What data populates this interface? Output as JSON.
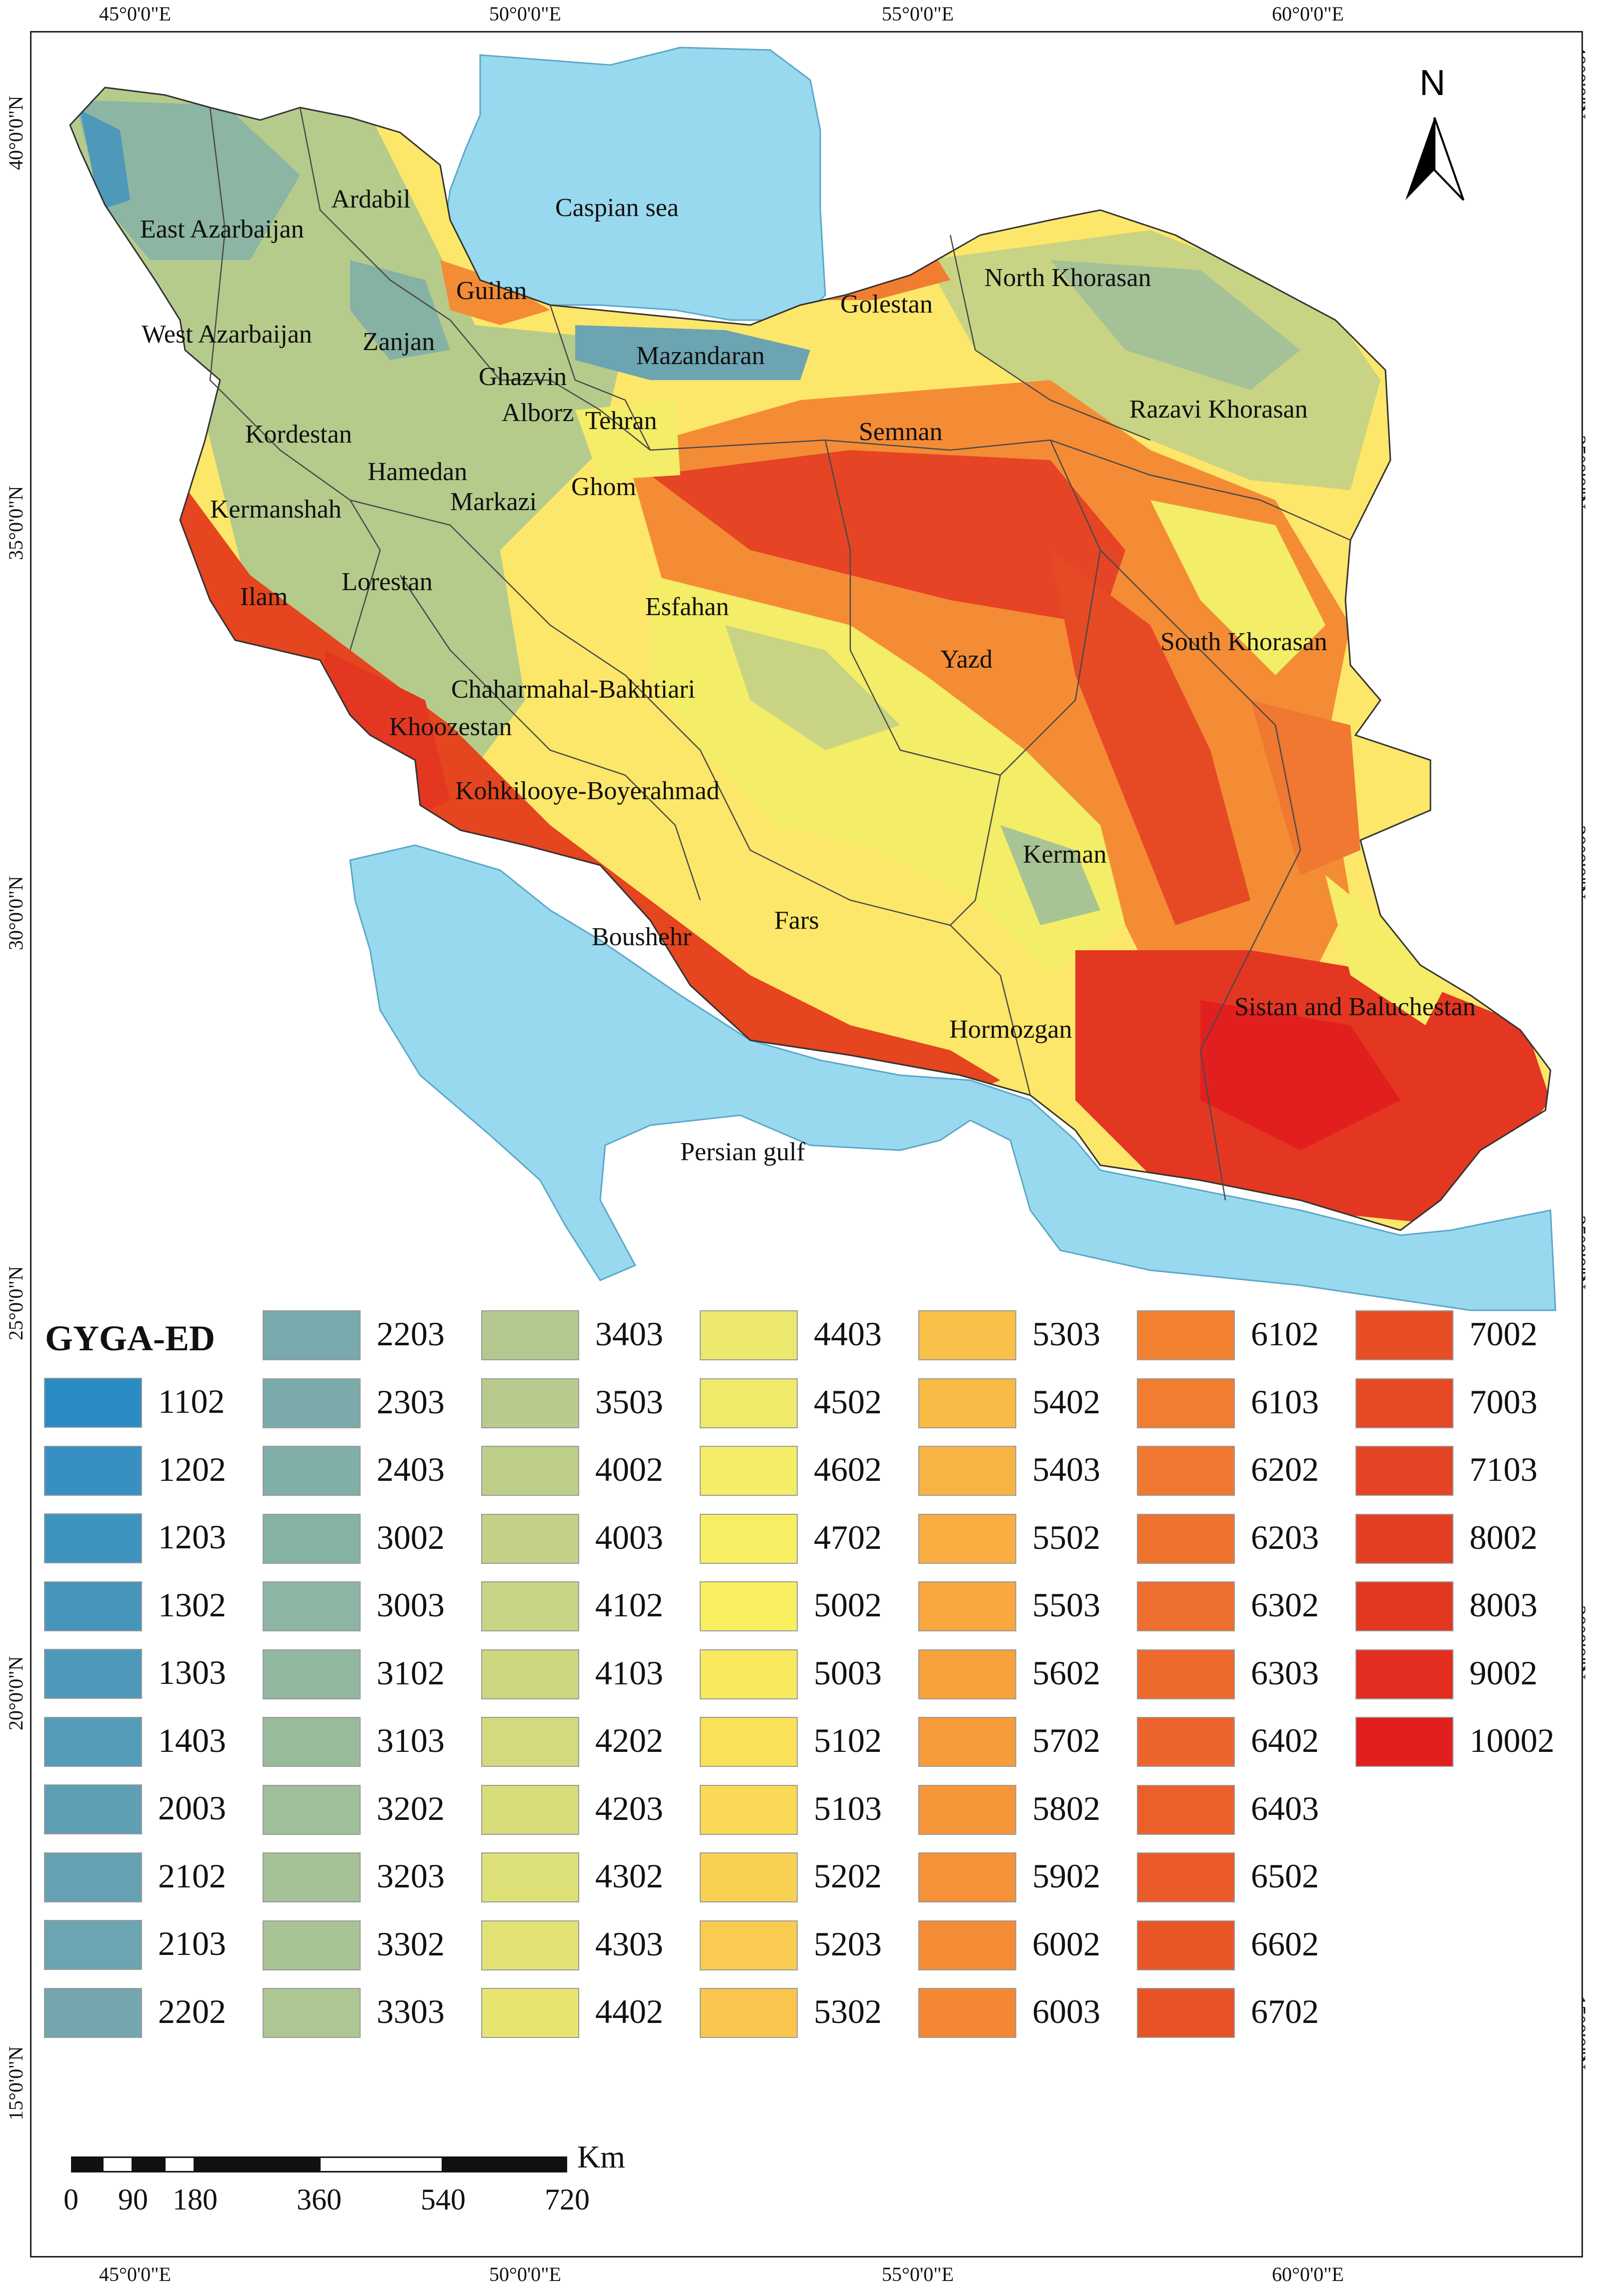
{
  "map": {
    "legend_title": "GYGA-ED",
    "north_label": "N",
    "longitude_labels": [
      "45°0'0\"E",
      "50°0'0\"E",
      "55°0'0\"E",
      "60°0'0\"E"
    ],
    "latitude_labels": [
      "40°0'0\"N",
      "35°0'0\"N",
      "30°0'0\"N",
      "25°0'0\"N",
      "20°0'0\"N",
      "15°0'0\"N"
    ],
    "water_labels": {
      "caspian": "Caspian sea",
      "gulf": "Persian gulf"
    },
    "provinces": {
      "ardabil": "Ardabil",
      "east_azarbaijan": "East Azarbaijan",
      "west_azarbaijan": "West Azarbaijan",
      "guilan": "Guilan",
      "zanjan": "Zanjan",
      "ghazvin": "Ghazvin",
      "alborz": "Alborz",
      "tehran": "Tehran",
      "mazandaran": "Mazandaran",
      "golestan": "Golestan",
      "north_khorasan": "North Khorasan",
      "razavi_khorasan": "Razavi Khorasan",
      "semnan": "Semnan",
      "kordestan": "Kordestan",
      "hamedan": "Hamedan",
      "ghom": "Ghom",
      "markazi": "Markazi",
      "kermanshah": "Kermanshah",
      "lorestan": "Lorestan",
      "ilam": "Ilam",
      "esfahan": "Esfahan",
      "yazd": "Yazd",
      "south_khorasan": "South Khorasan",
      "chaharmahal": "Chaharmahal-Bakhtiari",
      "khoozestan": "Khoozestan",
      "kohkilooye": "Kohkilooye-Boyerahmad",
      "kerman": "Kerman",
      "fars": "Fars",
      "boushehr": "Boushehr",
      "hormozgan": "Hormozgan",
      "sistan": "Sistan and Baluchestan"
    },
    "scale": {
      "unit": "Km",
      "labels": [
        "0",
        "90",
        "180",
        "360",
        "540",
        "720"
      ]
    },
    "colors": {
      "water": "#99d9f0",
      "country_base": "#fde76a"
    }
  },
  "legend": [
    {
      "label": "1102",
      "color": "#2b8cc4"
    },
    {
      "label": "1202",
      "color": "#3890c2"
    },
    {
      "label": "1203",
      "color": "#3f93bf"
    },
    {
      "label": "1302",
      "color": "#4696bc"
    },
    {
      "label": "1303",
      "color": "#4e99ba"
    },
    {
      "label": "1403",
      "color": "#559cb8"
    },
    {
      "label": "2003",
      "color": "#5e9fb6"
    },
    {
      "label": "2102",
      "color": "#65a1b3"
    },
    {
      "label": "2103",
      "color": "#6ca4b1"
    },
    {
      "label": "2202",
      "color": "#73a6ae"
    },
    {
      "label": "2203",
      "color": "#77a9ad"
    },
    {
      "label": "2303",
      "color": "#7aabaa"
    },
    {
      "label": "2403",
      "color": "#80aea8"
    },
    {
      "label": "3002",
      "color": "#86b1a5"
    },
    {
      "label": "3003",
      "color": "#8cb5a3"
    },
    {
      "label": "3102",
      "color": "#92b8a0"
    },
    {
      "label": "3103",
      "color": "#98bb9c"
    },
    {
      "label": "3202",
      "color": "#9fbe9a"
    },
    {
      "label": "3203",
      "color": "#a4c197"
    },
    {
      "label": "3302",
      "color": "#a9c494"
    },
    {
      "label": "3303",
      "color": "#aec692"
    },
    {
      "label": "3403",
      "color": "#b3c98f"
    },
    {
      "label": "3503",
      "color": "#b8cb8c"
    },
    {
      "label": "4002",
      "color": "#bdce89"
    },
    {
      "label": "4003",
      "color": "#c2d186"
    },
    {
      "label": "4102",
      "color": "#c8d483"
    },
    {
      "label": "4103",
      "color": "#cdd780"
    },
    {
      "label": "4202",
      "color": "#d2da7d"
    },
    {
      "label": "4203",
      "color": "#d8dc7a"
    },
    {
      "label": "4302",
      "color": "#dde077"
    },
    {
      "label": "4303",
      "color": "#e2e374"
    },
    {
      "label": "4402",
      "color": "#e7e570"
    },
    {
      "label": "4403",
      "color": "#ebe86d"
    },
    {
      "label": "4502",
      "color": "#efea6a"
    },
    {
      "label": "4602",
      "color": "#f3ed67"
    },
    {
      "label": "4702",
      "color": "#f6ef64"
    },
    {
      "label": "5002",
      "color": "#f8f060"
    },
    {
      "label": "5003",
      "color": "#f9e95c"
    },
    {
      "label": "5102",
      "color": "#f9e158"
    },
    {
      "label": "5103",
      "color": "#f9d955"
    },
    {
      "label": "5202",
      "color": "#f9d152"
    },
    {
      "label": "5203",
      "color": "#f9cb50"
    },
    {
      "label": "5302",
      "color": "#f9c54d"
    },
    {
      "label": "5303",
      "color": "#f9c049"
    },
    {
      "label": "5402",
      "color": "#f9ba46"
    },
    {
      "label": "5403",
      "color": "#f8b443"
    },
    {
      "label": "5502",
      "color": "#f8ae40"
    },
    {
      "label": "5503",
      "color": "#f8a83e"
    },
    {
      "label": "5602",
      "color": "#f7a23c"
    },
    {
      "label": "5702",
      "color": "#f69c3a"
    },
    {
      "label": "5802",
      "color": "#f59638"
    },
    {
      "label": "5902",
      "color": "#f59137"
    },
    {
      "label": "6002",
      "color": "#f48c36"
    },
    {
      "label": "6003",
      "color": "#f38734"
    },
    {
      "label": "6102",
      "color": "#f28232"
    },
    {
      "label": "6103",
      "color": "#f17d31"
    },
    {
      "label": "6202",
      "color": "#f07830"
    },
    {
      "label": "6203",
      "color": "#ef732e"
    },
    {
      "label": "6302",
      "color": "#ee6e2d"
    },
    {
      "label": "6303",
      "color": "#ed692c"
    },
    {
      "label": "6402",
      "color": "#ec642b"
    },
    {
      "label": "6403",
      "color": "#eb602a"
    },
    {
      "label": "6502",
      "color": "#ea5b29"
    },
    {
      "label": "6602",
      "color": "#e95728"
    },
    {
      "label": "6702",
      "color": "#e85227"
    },
    {
      "label": "7002",
      "color": "#e74e26"
    },
    {
      "label": "7003",
      "color": "#e64a25"
    },
    {
      "label": "7103",
      "color": "#e54524"
    },
    {
      "label": "8002",
      "color": "#e43f23"
    },
    {
      "label": "8003",
      "color": "#e33722"
    },
    {
      "label": "9002",
      "color": "#e32d21"
    },
    {
      "label": "10002",
      "color": "#e21f1f"
    }
  ]
}
